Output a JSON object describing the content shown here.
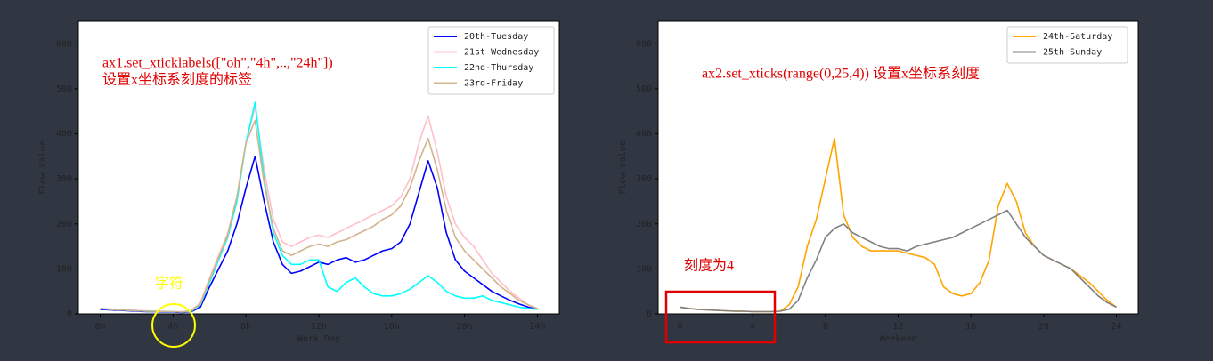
{
  "chart_data": [
    {
      "type": "line",
      "xlabel": "Work Day",
      "ylabel": "Flow Value",
      "xlim": [
        -1.2,
        25.2
      ],
      "ylim": [
        0,
        650
      ],
      "xticks": [
        {
          "value": 0,
          "label": "0h"
        },
        {
          "value": 4,
          "label": "4h"
        },
        {
          "value": 8,
          "label": "8h"
        },
        {
          "value": 12,
          "label": "12h"
        },
        {
          "value": 16,
          "label": "16h"
        },
        {
          "value": 20,
          "label": "20h"
        },
        {
          "value": 24,
          "label": "24h"
        }
      ],
      "yticks": [
        0,
        100,
        200,
        300,
        400,
        500,
        600
      ],
      "legend": "upper right",
      "x": [
        0,
        0.5,
        1,
        1.5,
        2,
        2.5,
        3,
        3.5,
        4,
        4.5,
        5,
        5.5,
        6,
        6.5,
        7,
        7.5,
        8,
        8.5,
        9,
        9.5,
        10,
        10.5,
        11,
        11.5,
        12,
        12.5,
        13,
        13.5,
        14,
        14.5,
        15,
        15.5,
        16,
        16.5,
        17,
        17.5,
        18,
        18.5,
        19,
        19.5,
        20,
        20.5,
        21,
        21.5,
        22,
        22.5,
        23,
        23.5,
        24
      ],
      "series": [
        {
          "name": "20th-Tuesday",
          "color": "#0000ff",
          "values": [
            10,
            9,
            8,
            7,
            6,
            5,
            5,
            4,
            4,
            3,
            5,
            15,
            60,
            100,
            140,
            200,
            280,
            350,
            250,
            160,
            110,
            90,
            95,
            105,
            115,
            110,
            120,
            125,
            115,
            120,
            130,
            140,
            145,
            160,
            200,
            270,
            340,
            280,
            180,
            120,
            95,
            80,
            65,
            50,
            40,
            30,
            22,
            15,
            10
          ]
        },
        {
          "name": "21st-Wednesday",
          "color": "#ffc0cb",
          "values": [
            12,
            11,
            10,
            9,
            8,
            7,
            6,
            6,
            5,
            5,
            8,
            25,
            80,
            130,
            180,
            260,
            380,
            460,
            320,
            210,
            160,
            150,
            160,
            170,
            175,
            170,
            180,
            190,
            200,
            210,
            220,
            230,
            240,
            260,
            300,
            380,
            440,
            360,
            260,
            200,
            170,
            150,
            120,
            90,
            70,
            50,
            35,
            20,
            12
          ]
        },
        {
          "name": "22nd-Thursday",
          "color": "#00ffff",
          "values": [
            12,
            10,
            9,
            8,
            7,
            6,
            6,
            5,
            5,
            4,
            6,
            20,
            70,
            120,
            170,
            250,
            380,
            470,
            300,
            180,
            130,
            110,
            110,
            120,
            120,
            60,
            50,
            70,
            80,
            60,
            45,
            40,
            40,
            45,
            55,
            70,
            85,
            70,
            50,
            40,
            35,
            35,
            40,
            30,
            25,
            20,
            15,
            12,
            10
          ]
        },
        {
          "name": "23rd-Friday",
          "color": "#d2b48c",
          "values": [
            12,
            10,
            9,
            8,
            7,
            6,
            6,
            5,
            5,
            4,
            7,
            22,
            75,
            125,
            175,
            260,
            380,
            430,
            290,
            190,
            140,
            130,
            140,
            150,
            155,
            150,
            160,
            165,
            175,
            185,
            195,
            210,
            220,
            240,
            280,
            340,
            390,
            320,
            230,
            170,
            140,
            120,
            100,
            80,
            60,
            45,
            30,
            20,
            12
          ]
        }
      ],
      "annotations": [
        "ax1.set_xticklabels([\"oh\",\"4h\",..,\"24h\"])",
        "设置x坐标系刻度的标签",
        "字符"
      ]
    },
    {
      "type": "line",
      "xlabel": "Weekend",
      "ylabel": "Flow value",
      "xlim": [
        -1.2,
        25.2
      ],
      "ylim": [
        0,
        650
      ],
      "xticks": [
        0,
        4,
        8,
        12,
        16,
        20,
        24
      ],
      "yticks": [
        0,
        100,
        200,
        300,
        400,
        500,
        600
      ],
      "legend": "upper right",
      "x": [
        0,
        0.5,
        1,
        1.5,
        2,
        2.5,
        3,
        3.5,
        4,
        4.5,
        5,
        5.5,
        6,
        6.5,
        7,
        7.5,
        8,
        8.5,
        9,
        9.5,
        10,
        10.5,
        11,
        11.5,
        12,
        12.5,
        13,
        13.5,
        14,
        14.5,
        15,
        15.5,
        16,
        16.5,
        17,
        17.5,
        18,
        18.5,
        19,
        19.5,
        20,
        20.5,
        21,
        21.5,
        22,
        22.5,
        23,
        23.5,
        24
      ],
      "series": [
        {
          "name": "24th-Saturday",
          "color": "#ffa500",
          "values": [
            15,
            12,
            10,
            9,
            8,
            7,
            6,
            6,
            5,
            5,
            5,
            6,
            20,
            60,
            150,
            210,
            300,
            390,
            220,
            170,
            150,
            140,
            140,
            140,
            140,
            135,
            130,
            125,
            110,
            60,
            45,
            40,
            45,
            70,
            120,
            240,
            290,
            250,
            180,
            150,
            130,
            120,
            110,
            100,
            85,
            70,
            50,
            30,
            15
          ]
        },
        {
          "name": "25th-Sunday",
          "color": "#808080",
          "values": [
            15,
            12,
            10,
            9,
            8,
            7,
            6,
            6,
            5,
            5,
            5,
            6,
            10,
            30,
            80,
            120,
            170,
            190,
            200,
            180,
            170,
            160,
            150,
            145,
            145,
            140,
            150,
            155,
            160,
            165,
            170,
            180,
            190,
            200,
            210,
            220,
            230,
            200,
            170,
            150,
            130,
            120,
            110,
            100,
            80,
            60,
            40,
            25,
            15
          ]
        }
      ],
      "annotations": [
        "ax2.set_xticks(range(0,25,4)) 设置x坐标系刻度",
        "刻度为4"
      ]
    }
  ]
}
